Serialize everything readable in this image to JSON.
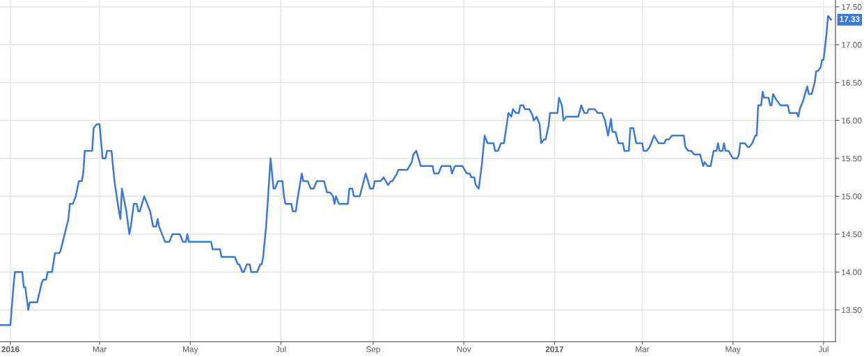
{
  "chart_data": {
    "type": "line",
    "x": [
      "2015-12-25",
      "2016-01-01",
      "2016-01-03",
      "2016-01-04",
      "2016-01-09",
      "2016-01-10",
      "2016-01-11",
      "2016-01-13",
      "2016-01-14",
      "2016-01-19",
      "2016-01-22",
      "2016-01-23",
      "2016-01-25",
      "2016-01-26",
      "2016-01-29",
      "2016-01-31",
      "2016-02-03",
      "2016-02-04",
      "2016-02-09",
      "2016-02-10",
      "2016-02-12",
      "2016-02-14",
      "2016-02-16",
      "2016-02-18",
      "2016-02-19",
      "2016-02-20",
      "2016-02-25",
      "2016-02-26",
      "2016-02-28",
      "2016-03-01",
      "2016-03-03",
      "2016-03-05",
      "2016-03-06",
      "2016-03-09",
      "2016-03-11",
      "2016-03-14",
      "2016-03-15",
      "2016-03-16",
      "2016-03-19",
      "2016-03-21",
      "2016-03-22",
      "2016-03-24",
      "2016-03-26",
      "2016-03-27",
      "2016-03-28",
      "2016-03-31",
      "2016-04-03",
      "2016-04-04",
      "2016-04-06",
      "2016-04-08",
      "2016-04-09",
      "2016-04-10",
      "2016-04-14",
      "2016-04-17",
      "2016-04-19",
      "2016-04-24",
      "2016-04-26",
      "2016-04-28",
      "2016-04-29",
      "2016-04-30",
      "2016-05-15",
      "2016-05-16",
      "2016-05-21",
      "2016-05-22",
      "2016-05-31",
      "2016-06-02",
      "2016-06-03",
      "2016-06-05",
      "2016-06-06",
      "2016-06-08",
      "2016-06-10",
      "2016-06-11",
      "2016-06-15",
      "2016-06-17",
      "2016-06-18",
      "2016-06-19",
      "2016-06-21",
      "2016-06-24",
      "2016-06-26",
      "2016-06-27",
      "2016-06-29",
      "2016-07-02",
      "2016-07-03",
      "2016-07-04",
      "2016-07-08",
      "2016-07-09",
      "2016-07-11",
      "2016-07-12",
      "2016-07-15",
      "2016-07-16",
      "2016-07-19",
      "2016-07-21",
      "2016-07-23",
      "2016-07-25",
      "2016-07-30",
      "2016-08-01",
      "2016-08-03",
      "2016-08-05",
      "2016-08-06",
      "2016-08-07",
      "2016-08-09",
      "2016-08-15",
      "2016-08-16",
      "2016-08-18",
      "2016-08-19",
      "2016-08-23",
      "2016-08-27",
      "2016-08-30",
      "2016-09-01",
      "2016-09-02",
      "2016-09-06",
      "2016-09-08",
      "2016-09-11",
      "2016-09-13",
      "2016-09-14",
      "2016-09-17",
      "2016-09-18",
      "2016-09-24",
      "2016-09-27",
      "2016-09-28",
      "2016-09-30",
      "2016-10-03",
      "2016-10-11",
      "2016-10-12",
      "2016-10-15",
      "2016-10-17",
      "2016-10-23",
      "2016-10-24",
      "2016-10-26",
      "2016-10-31",
      "2016-11-03",
      "2016-11-05",
      "2016-11-06",
      "2016-11-08",
      "2016-11-09",
      "2016-11-11",
      "2016-11-13",
      "2016-11-15",
      "2016-11-17",
      "2016-11-21",
      "2016-11-22",
      "2016-11-24",
      "2016-11-26",
      "2016-11-28",
      "2016-12-01",
      "2016-12-03",
      "2016-12-04",
      "2016-12-06",
      "2016-12-08",
      "2016-12-09",
      "2016-12-11",
      "2016-12-12",
      "2016-12-15",
      "2016-12-17",
      "2016-12-18",
      "2016-12-20",
      "2016-12-22",
      "2016-12-23",
      "2016-12-25",
      "2016-12-26",
      "2016-12-28",
      "2016-12-29",
      "2017-01-03",
      "2017-01-04",
      "2017-01-06",
      "2017-01-07",
      "2017-01-09",
      "2017-01-17",
      "2017-01-19",
      "2017-01-21",
      "2017-01-23",
      "2017-01-24",
      "2017-01-28",
      "2017-01-30",
      "2017-02-02",
      "2017-02-04",
      "2017-02-06",
      "2017-02-08",
      "2017-02-09",
      "2017-02-11",
      "2017-02-13",
      "2017-02-16",
      "2017-02-17",
      "2017-02-20",
      "2017-02-21",
      "2017-02-23",
      "2017-02-25",
      "2017-03-01",
      "2017-03-02",
      "2017-03-04",
      "2017-03-06",
      "2017-03-08",
      "2017-03-09",
      "2017-03-12",
      "2017-03-16",
      "2017-03-17",
      "2017-03-19",
      "2017-03-21",
      "2017-03-29",
      "2017-03-30",
      "2017-04-01",
      "2017-04-03",
      "2017-04-05",
      "2017-04-09",
      "2017-04-11",
      "2017-04-12",
      "2017-04-14",
      "2017-04-16",
      "2017-04-18",
      "2017-04-20",
      "2017-04-21",
      "2017-04-22",
      "2017-04-24",
      "2017-04-25",
      "2017-04-26",
      "2017-04-28",
      "2017-05-01",
      "2017-05-04",
      "2017-05-05",
      "2017-05-06",
      "2017-05-09",
      "2017-05-11",
      "2017-05-12",
      "2017-05-14",
      "2017-05-16",
      "2017-05-17",
      "2017-05-18",
      "2017-05-20",
      "2017-05-21",
      "2017-05-22",
      "2017-05-25",
      "2017-05-26",
      "2017-05-27",
      "2017-05-28",
      "2017-05-30",
      "2017-06-02",
      "2017-06-07",
      "2017-06-08",
      "2017-06-13",
      "2017-06-14",
      "2017-06-15",
      "2017-06-17",
      "2017-06-20",
      "2017-06-21",
      "2017-06-23",
      "2017-06-25",
      "2017-06-26",
      "2017-06-27",
      "2017-06-29",
      "2017-06-30",
      "2017-07-01",
      "2017-07-03",
      "2017-07-04",
      "2017-07-06"
    ],
    "series": [
      {
        "color": "#3b78d8",
        "values": [
          13.3,
          13.3,
          13.8,
          14.0,
          14.0,
          13.8,
          13.8,
          13.5,
          13.6,
          13.6,
          13.85,
          13.9,
          13.9,
          14.0,
          14.0,
          14.25,
          14.25,
          14.3,
          14.7,
          14.9,
          14.9,
          15.0,
          15.2,
          15.2,
          15.3,
          15.6,
          15.6,
          15.9,
          15.95,
          15.95,
          15.5,
          15.5,
          15.6,
          15.6,
          15.2,
          14.8,
          14.7,
          15.1,
          14.8,
          14.5,
          14.6,
          14.9,
          14.9,
          14.8,
          14.8,
          15.0,
          14.85,
          14.8,
          14.6,
          14.6,
          14.7,
          14.6,
          14.4,
          14.4,
          14.5,
          14.5,
          14.4,
          14.4,
          14.5,
          14.4,
          14.4,
          14.3,
          14.3,
          14.2,
          14.2,
          14.1,
          14.1,
          14.0,
          14.0,
          14.1,
          14.1,
          14.0,
          14.0,
          14.1,
          14.1,
          14.2,
          14.6,
          15.5,
          15.1,
          15.1,
          15.2,
          15.2,
          15.0,
          14.9,
          14.9,
          14.8,
          14.8,
          14.95,
          15.3,
          15.2,
          15.2,
          15.1,
          15.1,
          15.2,
          15.2,
          15.05,
          15.05,
          15.0,
          14.9,
          15.0,
          14.9,
          14.9,
          15.1,
          15.1,
          15.0,
          15.0,
          15.3,
          15.1,
          15.1,
          15.2,
          15.2,
          15.25,
          15.15,
          15.2,
          15.2,
          15.3,
          15.35,
          15.35,
          15.45,
          15.55,
          15.6,
          15.4,
          15.4,
          15.3,
          15.3,
          15.4,
          15.4,
          15.3,
          15.4,
          15.4,
          15.3,
          15.3,
          15.25,
          15.25,
          15.15,
          15.1,
          15.4,
          15.8,
          15.7,
          15.7,
          15.6,
          15.6,
          15.7,
          15.7,
          16.1,
          16.05,
          16.15,
          16.1,
          16.1,
          16.2,
          16.2,
          16.15,
          16.15,
          16.08,
          16.0,
          16.05,
          15.95,
          15.7,
          15.75,
          15.75,
          15.93,
          16.1,
          16.1,
          16.3,
          16.2,
          16.0,
          16.05,
          16.05,
          16.2,
          16.1,
          16.1,
          16.15,
          16.15,
          16.1,
          16.1,
          16.0,
          15.8,
          16.02,
          15.85,
          15.85,
          15.7,
          15.7,
          15.6,
          15.6,
          15.9,
          15.9,
          15.7,
          15.7,
          15.6,
          15.6,
          15.65,
          15.75,
          15.8,
          15.7,
          15.7,
          15.75,
          15.75,
          15.8,
          15.8,
          15.65,
          15.6,
          15.6,
          15.55,
          15.55,
          15.4,
          15.45,
          15.4,
          15.4,
          15.6,
          15.6,
          15.7,
          15.6,
          15.6,
          15.7,
          15.6,
          15.6,
          15.5,
          15.5,
          15.55,
          15.7,
          15.7,
          15.65,
          15.65,
          15.7,
          15.8,
          15.8,
          16.2,
          16.2,
          16.38,
          16.3,
          16.3,
          16.2,
          16.2,
          16.35,
          16.28,
          16.2,
          16.2,
          16.1,
          16.1,
          16.05,
          16.15,
          16.25,
          16.45,
          16.35,
          16.35,
          16.5,
          16.65,
          16.65,
          16.7,
          16.8,
          16.8,
          17.15,
          17.38,
          17.33
        ],
        "value_labels": [
          null,
          null,
          null,
          null,
          null,
          null,
          null,
          null,
          null,
          null,
          null,
          null,
          null,
          null,
          null,
          null,
          null,
          null,
          null,
          null,
          null,
          null,
          null,
          null,
          null,
          null,
          null,
          null,
          null,
          null,
          null,
          null,
          null,
          null,
          null,
          null,
          null,
          null,
          null,
          null,
          null,
          null,
          null,
          null,
          null,
          null,
          null,
          null,
          null,
          null,
          null,
          null,
          null,
          null,
          null,
          null,
          null,
          null,
          null,
          null,
          null,
          null,
          null,
          null,
          null,
          null,
          null,
          null,
          null,
          null,
          null,
          null,
          null,
          null,
          null,
          null,
          null,
          null,
          null,
          null,
          null,
          null,
          null,
          null,
          null,
          null,
          null,
          null,
          null,
          null,
          null,
          null,
          null,
          null,
          null,
          null,
          null,
          null,
          null,
          null,
          null,
          null,
          null,
          null,
          null,
          null,
          null,
          null,
          null,
          null,
          null,
          null,
          null,
          null,
          null,
          null,
          null,
          null,
          null,
          null,
          null,
          null,
          null,
          null,
          null,
          null,
          null,
          null,
          null,
          null,
          null,
          null,
          null,
          null,
          null,
          null,
          null,
          null,
          null,
          null,
          null,
          null,
          null,
          null,
          null,
          null,
          null,
          null,
          null,
          null,
          null,
          null,
          null,
          null,
          null,
          null,
          null,
          null,
          null,
          null,
          null,
          null,
          null,
          null,
          null,
          null,
          null,
          null,
          null,
          null,
          null,
          null,
          null,
          null,
          null,
          null,
          null,
          null,
          null,
          null,
          null,
          null,
          null,
          null,
          null,
          null,
          null,
          null,
          null,
          null,
          null,
          null,
          null,
          null,
          null,
          null,
          null,
          null,
          null,
          null,
          null,
          null,
          null,
          null,
          null,
          null,
          null,
          null,
          null,
          null,
          null,
          null,
          null,
          null,
          null,
          null,
          null,
          null,
          null,
          null,
          null,
          null,
          null,
          null,
          null,
          null,
          null,
          null,
          null,
          null,
          null,
          null,
          null,
          null,
          null,
          null,
          null,
          null,
          null,
          null,
          null,
          null,
          null,
          null,
          null,
          null,
          null,
          null,
          null,
          null,
          null,
          null,
          null,
          "17.33"
        ]
      }
    ],
    "xlim": [
      "2015-12-25",
      "2017-07-09"
    ],
    "xticks": [
      {
        "value": "2016-01-01",
        "label": "2016"
      },
      {
        "value": "2016-03-01",
        "label": "Mar"
      },
      {
        "value": "2016-05-01",
        "label": "May"
      },
      {
        "value": "2016-07-01",
        "label": "Jul"
      },
      {
        "value": "2016-09-01",
        "label": "Sep"
      },
      {
        "value": "2016-11-01",
        "label": "Nov"
      },
      {
        "value": "2017-01-01",
        "label": "2017"
      },
      {
        "value": "2017-03-01",
        "label": "Mar"
      },
      {
        "value": "2017-05-01",
        "label": "May"
      },
      {
        "value": "2017-07-01",
        "label": "Jul"
      }
    ],
    "ylim": [
      13.08,
      17.59
    ],
    "yticks": [
      {
        "value": 13.5,
        "label": "13.50"
      },
      {
        "value": 14.0,
        "label": "14.00"
      },
      {
        "value": 14.5,
        "label": "14.50"
      },
      {
        "value": 15.0,
        "label": "15.00"
      },
      {
        "value": 15.5,
        "label": "15.50"
      },
      {
        "value": 16.0,
        "label": "16.00"
      },
      {
        "value": 16.5,
        "label": "16.50"
      },
      {
        "value": 17.0,
        "label": "17.00"
      },
      {
        "value": 17.5,
        "label": "17.50"
      }
    ],
    "grid": true,
    "legend": false,
    "marker": "none",
    "line_style": "solid"
  }
}
